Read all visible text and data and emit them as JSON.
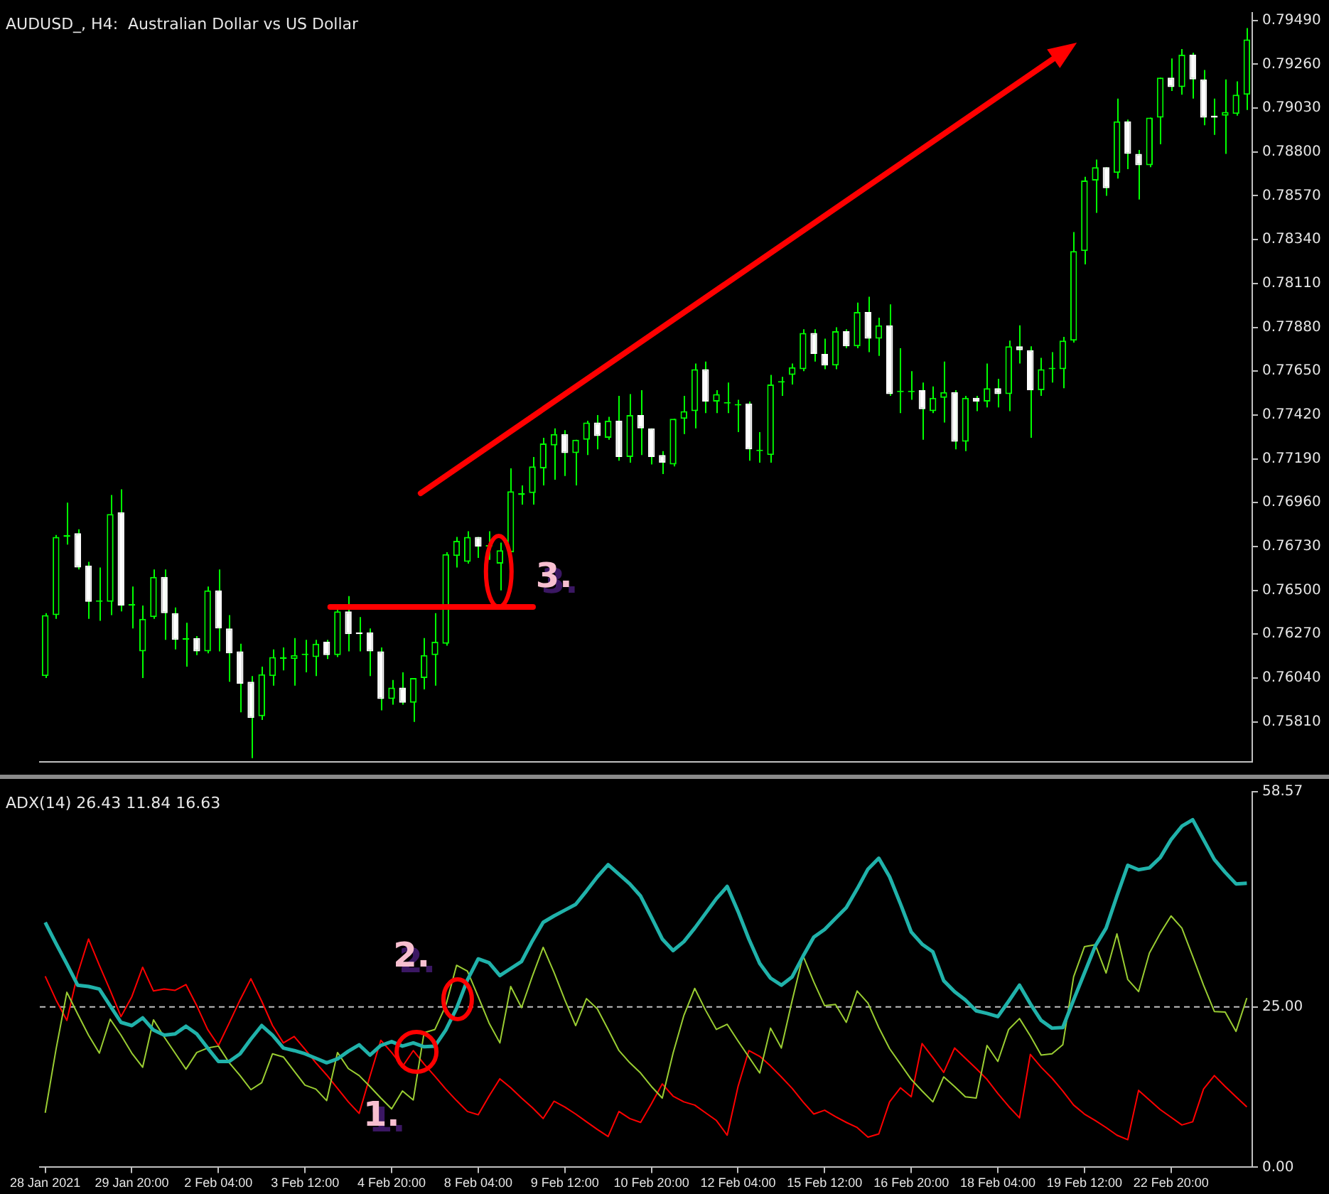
{
  "chart_data": [
    {
      "type": "candlestick",
      "title": "AUDUSD_, H4:  Australian Dollar vs US Dollar",
      "ohlc": [
        [
          0.7605,
          0.7638,
          0.7604,
          0.7637
        ],
        [
          0.7637,
          0.7679,
          0.7635,
          0.7678
        ],
        [
          0.7678,
          0.7696,
          0.7674,
          0.7679
        ],
        [
          0.768,
          0.7682,
          0.7661,
          0.7662
        ],
        [
          0.7663,
          0.7665,
          0.7635,
          0.7644
        ],
        [
          0.7644,
          0.7662,
          0.7634,
          0.7644
        ],
        [
          0.7644,
          0.77,
          0.7637,
          0.769
        ],
        [
          0.7691,
          0.7703,
          0.7639,
          0.7642
        ],
        [
          0.7642,
          0.7652,
          0.763,
          0.7642
        ],
        [
          0.7618,
          0.7642,
          0.7604,
          0.7635
        ],
        [
          0.7636,
          0.7661,
          0.7635,
          0.7657
        ],
        [
          0.7657,
          0.7661,
          0.7624,
          0.7638
        ],
        [
          0.7638,
          0.7641,
          0.7619,
          0.7624
        ],
        [
          0.7624,
          0.7633,
          0.761,
          0.7625
        ],
        [
          0.7625,
          0.7626,
          0.7616,
          0.7618
        ],
        [
          0.7618,
          0.7652,
          0.7617,
          0.765
        ],
        [
          0.765,
          0.7661,
          0.7618,
          0.763
        ],
        [
          0.763,
          0.7637,
          0.7602,
          0.7617
        ],
        [
          0.7618,
          0.7622,
          0.7586,
          0.7601
        ],
        [
          0.7602,
          0.7605,
          0.7562,
          0.7583
        ],
        [
          0.7584,
          0.761,
          0.7582,
          0.7606
        ],
        [
          0.7605,
          0.7619,
          0.76,
          0.7615
        ],
        [
          0.7614,
          0.762,
          0.7608,
          0.7615
        ],
        [
          0.7614,
          0.7625,
          0.76,
          0.7616
        ],
        [
          0.7616,
          0.7624,
          0.7607,
          0.7616
        ],
        [
          0.7615,
          0.7624,
          0.7605,
          0.7622
        ],
        [
          0.7623,
          0.7624,
          0.7614,
          0.7616
        ],
        [
          0.7616,
          0.7641,
          0.7615,
          0.7639
        ],
        [
          0.7639,
          0.7647,
          0.7618,
          0.7627
        ],
        [
          0.7628,
          0.7636,
          0.7618,
          0.7627
        ],
        [
          0.7628,
          0.763,
          0.7605,
          0.7618
        ],
        [
          0.7618,
          0.762,
          0.7587,
          0.7593
        ],
        [
          0.7593,
          0.7603,
          0.759,
          0.7599
        ],
        [
          0.7599,
          0.7607,
          0.759,
          0.7591
        ],
        [
          0.7591,
          0.7604,
          0.7581,
          0.7604
        ],
        [
          0.7604,
          0.7625,
          0.7598,
          0.7616
        ],
        [
          0.7616,
          0.7638,
          0.76,
          0.7623
        ],
        [
          0.7622,
          0.767,
          0.7621,
          0.7669
        ],
        [
          0.7668,
          0.7678,
          0.7662,
          0.7676
        ],
        [
          0.7665,
          0.7681,
          0.7664,
          0.7678
        ],
        [
          0.7678,
          0.7678,
          0.7667,
          0.7673
        ],
        [
          0.7673,
          0.7681,
          0.7666,
          0.7673
        ],
        [
          0.7664,
          0.7675,
          0.765,
          0.7671
        ],
        [
          0.767,
          0.7714,
          0.7669,
          0.7702
        ],
        [
          0.77,
          0.7705,
          0.7695,
          0.7701
        ],
        [
          0.7701,
          0.772,
          0.7695,
          0.7715
        ],
        [
          0.7714,
          0.773,
          0.7705,
          0.7727
        ],
        [
          0.7726,
          0.7735,
          0.7708,
          0.7732
        ],
        [
          0.7732,
          0.7734,
          0.771,
          0.7722
        ],
        [
          0.7722,
          0.7729,
          0.7705,
          0.7729
        ],
        [
          0.7729,
          0.7739,
          0.7721,
          0.7738
        ],
        [
          0.7738,
          0.7742,
          0.7724,
          0.7731
        ],
        [
          0.773,
          0.7741,
          0.7729,
          0.7739
        ],
        [
          0.7739,
          0.7752,
          0.7718,
          0.772
        ],
        [
          0.772,
          0.7753,
          0.7717,
          0.7742
        ],
        [
          0.7742,
          0.7755,
          0.7721,
          0.7735
        ],
        [
          0.7735,
          0.7735,
          0.7716,
          0.772
        ],
        [
          0.7721,
          0.7723,
          0.7711,
          0.7717
        ],
        [
          0.7716,
          0.774,
          0.7715,
          0.774
        ],
        [
          0.774,
          0.7752,
          0.7732,
          0.7744
        ],
        [
          0.7744,
          0.7769,
          0.7735,
          0.7766
        ],
        [
          0.7766,
          0.777,
          0.7743,
          0.7749
        ],
        [
          0.7749,
          0.7755,
          0.7743,
          0.7753
        ],
        [
          0.7748,
          0.7759,
          0.7743,
          0.7748
        ],
        [
          0.7747,
          0.775,
          0.7733,
          0.7747
        ],
        [
          0.7748,
          0.7749,
          0.7718,
          0.7724
        ],
        [
          0.7723,
          0.7733,
          0.7717,
          0.7723
        ],
        [
          0.7721,
          0.7763,
          0.7717,
          0.7758
        ],
        [
          0.7759,
          0.7762,
          0.7752,
          0.7759
        ],
        [
          0.7763,
          0.7769,
          0.7758,
          0.7767
        ],
        [
          0.7766,
          0.7787,
          0.7765,
          0.7785
        ],
        [
          0.7785,
          0.7787,
          0.777,
          0.7774
        ],
        [
          0.7774,
          0.7782,
          0.7766,
          0.7768
        ],
        [
          0.7768,
          0.7788,
          0.7766,
          0.7786
        ],
        [
          0.7786,
          0.7787,
          0.7777,
          0.7778
        ],
        [
          0.7778,
          0.7801,
          0.7777,
          0.7796
        ],
        [
          0.7796,
          0.7804,
          0.7775,
          0.7782
        ],
        [
          0.7782,
          0.7793,
          0.7773,
          0.7789
        ],
        [
          0.7789,
          0.78,
          0.7752,
          0.7753
        ],
        [
          0.7754,
          0.7777,
          0.7743,
          0.7754
        ],
        [
          0.7754,
          0.7765,
          0.775,
          0.7754
        ],
        [
          0.7755,
          0.7759,
          0.7729,
          0.7745
        ],
        [
          0.7744,
          0.7757,
          0.7743,
          0.7751
        ],
        [
          0.7751,
          0.777,
          0.7738,
          0.7754
        ],
        [
          0.7754,
          0.7755,
          0.7724,
          0.7728
        ],
        [
          0.7728,
          0.7752,
          0.7723,
          0.7751
        ],
        [
          0.7751,
          0.7752,
          0.7744,
          0.7749
        ],
        [
          0.7749,
          0.7769,
          0.7746,
          0.7756
        ],
        [
          0.7756,
          0.7761,
          0.7746,
          0.7753
        ],
        [
          0.7753,
          0.7781,
          0.7744,
          0.7778
        ],
        [
          0.7778,
          0.7789,
          0.7769,
          0.7776
        ],
        [
          0.7776,
          0.7778,
          0.773,
          0.7755
        ],
        [
          0.7755,
          0.7772,
          0.7752,
          0.7766
        ],
        [
          0.7766,
          0.7775,
          0.7759,
          0.7766
        ],
        [
          0.7766,
          0.7783,
          0.7756,
          0.7781
        ],
        [
          0.7781,
          0.7838,
          0.778,
          0.7828
        ],
        [
          0.7828,
          0.7867,
          0.7821,
          0.7865
        ],
        [
          0.7865,
          0.7876,
          0.7848,
          0.7872
        ],
        [
          0.7872,
          0.7872,
          0.7857,
          0.7861
        ],
        [
          0.7869,
          0.7908,
          0.7866,
          0.7896
        ],
        [
          0.7896,
          0.7897,
          0.7871,
          0.7879
        ],
        [
          0.7879,
          0.7881,
          0.7855,
          0.7873
        ],
        [
          0.7873,
          0.7898,
          0.7872,
          0.7898
        ],
        [
          0.7898,
          0.7919,
          0.7884,
          0.7919
        ],
        [
          0.7919,
          0.7929,
          0.7912,
          0.7914
        ],
        [
          0.7914,
          0.7934,
          0.791,
          0.7931
        ],
        [
          0.7931,
          0.7932,
          0.7908,
          0.7918
        ],
        [
          0.7918,
          0.7923,
          0.7894,
          0.7898
        ],
        [
          0.7899,
          0.7908,
          0.7889,
          0.7898
        ],
        [
          0.7899,
          0.7918,
          0.7879,
          0.7901
        ],
        [
          0.79,
          0.7917,
          0.7899,
          0.791
        ],
        [
          0.791,
          0.7945,
          0.7902,
          0.7939
        ]
      ],
      "color": "#00ff00",
      "colors": [
        "#00ff00",
        "#00ff00",
        "#00ff00",
        "#ffffff",
        "#ffffff",
        "#00ff00",
        "#00ff00",
        "#ffffff",
        "#00ff00",
        "#00ff00",
        "#00ff00",
        "#ffffff",
        "#ffffff",
        "#00ff00",
        "#ffffff",
        "#00ff00",
        "#ffffff",
        "#ffffff",
        "#ffffff",
        "#ffffff",
        "#00ff00",
        "#00ff00",
        "#00ff00",
        "#00ff00",
        "#00ff00",
        "#00ff00",
        "#ffffff",
        "#00ff00",
        "#ffffff",
        "#ffffff",
        "#ffffff",
        "#ffffff",
        "#00ff00",
        "#ffffff",
        "#00ff00",
        "#00ff00",
        "#00ff00",
        "#00ff00",
        "#00ff00",
        "#00ff00",
        "#ffffff",
        "#00ff00",
        "#00ff00",
        "#00ff00",
        "#00ff00",
        "#00ff00",
        "#00ff00",
        "#00ff00",
        "#ffffff",
        "#00ff00",
        "#00ff00",
        "#ffffff",
        "#00ff00",
        "#ffffff",
        "#00ff00",
        "#ffffff",
        "#ffffff",
        "#ffffff",
        "#00ff00",
        "#00ff00",
        "#00ff00",
        "#ffffff",
        "#00ff00",
        "#00ff00",
        "#00ff00",
        "#ffffff",
        "#00ff00",
        "#00ff00",
        "#00ff00",
        "#00ff00",
        "#00ff00",
        "#ffffff",
        "#ffffff",
        "#00ff00",
        "#ffffff",
        "#00ff00",
        "#ffffff",
        "#00ff00",
        "#ffffff",
        "#00ff00",
        "#00ff00",
        "#ffffff",
        "#00ff00",
        "#00ff00",
        "#ffffff",
        "#00ff00",
        "#ffffff",
        "#00ff00",
        "#ffffff",
        "#00ff00",
        "#ffffff",
        "#ffffff",
        "#00ff00",
        "#00ff00",
        "#00ff00",
        "#00ff00",
        "#00ff00",
        "#00ff00",
        "#ffffff",
        "#00ff00",
        "#ffffff",
        "#ffffff",
        "#00ff00",
        "#00ff00",
        "#ffffff",
        "#00ff00",
        "#ffffff",
        "#ffffff",
        "#ffffff",
        "#00ff00",
        "#00ff00",
        "#00ff00"
      ],
      "ylim": [
        0.756,
        0.7953
      ],
      "yticks": [
        {
          "value": 0.7949,
          "label": "0.79490"
        },
        {
          "value": 0.7926,
          "label": "0.79260"
        },
        {
          "value": 0.7903,
          "label": "0.79030"
        },
        {
          "value": 0.788,
          "label": "0.78800"
        },
        {
          "value": 0.7857,
          "label": "0.78570"
        },
        {
          "value": 0.7834,
          "label": "0.78340"
        },
        {
          "value": 0.7811,
          "label": "0.78110"
        },
        {
          "value": 0.7788,
          "label": "0.77880"
        },
        {
          "value": 0.7765,
          "label": "0.77650"
        },
        {
          "value": 0.7742,
          "label": "0.77420"
        },
        {
          "value": 0.7719,
          "label": "0.77190"
        },
        {
          "value": 0.7696,
          "label": "0.76960"
        },
        {
          "value": 0.7673,
          "label": "0.76730"
        },
        {
          "value": 0.765,
          "label": "0.76500"
        },
        {
          "value": 0.7627,
          "label": "0.76270"
        },
        {
          "value": 0.7604,
          "label": "0.76040"
        },
        {
          "value": 0.7581,
          "label": "0.75810"
        }
      ],
      "tick_labels": "y",
      "annotations": [
        "3."
      ]
    },
    {
      "type": "line",
      "title": "ADX(14) 26.43 11.84 16.63",
      "categories": [
        "28 Jan 2021",
        null,
        null,
        null,
        null,
        null,
        null,
        null,
        "29 Jan 20:00",
        null,
        null,
        null,
        null,
        null,
        null,
        null,
        "2 Feb 04:00",
        null,
        null,
        null,
        null,
        null,
        null,
        null,
        "3 Feb 12:00",
        null,
        null,
        null,
        null,
        null,
        null,
        null,
        "4 Feb 20:00",
        null,
        null,
        null,
        null,
        null,
        null,
        null,
        "8 Feb 04:00",
        null,
        null,
        null,
        null,
        null,
        null,
        null,
        "9 Feb 12:00",
        null,
        null,
        null,
        null,
        null,
        null,
        null,
        "10 Feb 20:00",
        null,
        null,
        null,
        null,
        null,
        null,
        null,
        "12 Feb 04:00",
        null,
        null,
        null,
        null,
        null,
        null,
        null,
        "15 Feb 12:00",
        null,
        null,
        null,
        null,
        null,
        null,
        null,
        "16 Feb 20:00",
        null,
        null,
        null,
        null,
        null,
        null,
        null,
        "18 Feb 04:00",
        null,
        null,
        null,
        null,
        null,
        null,
        null,
        "19 Feb 12:00",
        null,
        null,
        null,
        null,
        null,
        null,
        null,
        "22 Feb 20:00",
        null,
        null,
        null,
        null,
        null,
        null,
        null
      ],
      "series": [
        {
          "color": "#20b2aa",
          "values": [
            38.2,
            34.9,
            31.7,
            28.4,
            28.2,
            27.8,
            25.2,
            22.6,
            22.1,
            23.3,
            21.4,
            20.6,
            20.8,
            22.0,
            20.8,
            18.6,
            16.5,
            16.5,
            17.7,
            20.0,
            22.1,
            20.6,
            18.6,
            18.2,
            17.7,
            17.0,
            16.3,
            16.9,
            18.1,
            19.1,
            17.5,
            19.0,
            19.6,
            18.9,
            19.4,
            18.8,
            18.9,
            21.4,
            24.8,
            29.2,
            32.5,
            31.9,
            29.9,
            31.0,
            32.1,
            35.3,
            38.2,
            39.2,
            40.1,
            41.0,
            43.1,
            45.3,
            47.2,
            45.7,
            44.2,
            42.3,
            39.0,
            35.6,
            33.8,
            35.2,
            37.3,
            39.6,
            41.9,
            43.8,
            39.9,
            35.6,
            31.8,
            29.5,
            28.4,
            29.7,
            32.9,
            35.9,
            37.1,
            38.8,
            40.5,
            43.4,
            46.5,
            48.2,
            45.3,
            41.1,
            36.7,
            34.8,
            33.6,
            29.1,
            27.4,
            26.1,
            24.4,
            24.0,
            23.5,
            25.9,
            28.4,
            25.5,
            22.9,
            21.7,
            21.8,
            26.1,
            30.3,
            34.5,
            37.3,
            42.3,
            47.1,
            46.4,
            46.7,
            48.3,
            51.1,
            53.2,
            54.2,
            51.1,
            48.0,
            46.0,
            44.2,
            44.3
          ]
        },
        {
          "color": "#9acd32",
          "values": [
            8.5,
            18.4,
            27.3,
            23.9,
            20.6,
            17.8,
            23.1,
            20.6,
            17.8,
            15.6,
            23.0,
            20.3,
            17.8,
            15.3,
            17.9,
            18.6,
            18.9,
            16.3,
            14.3,
            12.1,
            13.2,
            17.7,
            17.2,
            15.0,
            12.8,
            12.2,
            10.4,
            17.9,
            15.4,
            14.3,
            12.6,
            10.8,
            9.1,
            11.9,
            10.5,
            21.0,
            21.5,
            25.2,
            31.5,
            30.6,
            26.6,
            22.5,
            19.4,
            28.2,
            24.9,
            29.8,
            34.3,
            30.4,
            26.1,
            22.1,
            26.3,
            24.7,
            21.5,
            18.2,
            16.3,
            14.7,
            12.6,
            10.8,
            17.8,
            23.7,
            27.9,
            24.5,
            21.5,
            22.3,
            19.7,
            17.2,
            14.7,
            21.7,
            18.6,
            26.0,
            33.0,
            28.9,
            25.2,
            25.4,
            22.6,
            27.5,
            25.6,
            21.8,
            18.5,
            16.1,
            13.7,
            11.9,
            10.2,
            14.1,
            12.6,
            11.0,
            10.8,
            19.0,
            16.5,
            21.5,
            23.2,
            20.5,
            17.5,
            17.7,
            19.1,
            29.7,
            34.4,
            34.7,
            30.3,
            36.4,
            29.3,
            27.4,
            33.4,
            36.5,
            39.2,
            37.3,
            32.9,
            28.4,
            24.3,
            24.2,
            21.2,
            26.4
          ]
        },
        {
          "color": "#ff0000",
          "values": [
            29.8,
            26.1,
            22.9,
            30.2,
            35.6,
            31.5,
            27.6,
            23.5,
            26.6,
            31.2,
            27.5,
            27.8,
            27.6,
            28.5,
            25.2,
            21.5,
            19.0,
            22.5,
            26.1,
            29.4,
            25.9,
            22.1,
            19.4,
            20.4,
            18.4,
            16.3,
            14.4,
            12.3,
            10.2,
            8.4,
            14.2,
            19.8,
            17.9,
            15.7,
            18.2,
            16.1,
            14.2,
            12.2,
            10.4,
            8.7,
            8.2,
            11.1,
            13.8,
            12.4,
            10.8,
            9.3,
            7.6,
            10.3,
            9.4,
            8.3,
            7.1,
            5.9,
            4.8,
            8.7,
            7.6,
            7.0,
            9.9,
            13.0,
            11.1,
            10.2,
            9.7,
            8.5,
            7.3,
            5.0,
            12.6,
            18.2,
            17.3,
            15.8,
            14.1,
            12.3,
            10.2,
            8.3,
            8.9,
            7.9,
            7.0,
            6.2,
            4.7,
            5.2,
            10.2,
            12.4,
            11.0,
            19.3,
            17.1,
            14.8,
            18.6,
            17.0,
            15.4,
            13.7,
            11.5,
            9.5,
            7.7,
            17.6,
            15.6,
            13.9,
            11.9,
            9.7,
            8.3,
            7.3,
            6.2,
            5.0,
            4.3,
            12.0,
            10.5,
            9.0,
            7.8,
            6.6,
            7.1,
            12.2,
            14.3,
            12.6,
            11.0,
            9.4
          ]
        }
      ],
      "ylim": [
        0,
        58.57
      ],
      "yticks": [
        {
          "value": 0,
          "label": "0.00"
        },
        {
          "value": 25,
          "label": "25.00"
        },
        58.57
      ],
      "ref_lines": [
        {
          "axis": "y",
          "value": 25,
          "color": "#c0c0c0",
          "line_style": "dashed"
        }
      ],
      "marker": "none",
      "annotations": [
        "2.",
        "1."
      ]
    }
  ]
}
